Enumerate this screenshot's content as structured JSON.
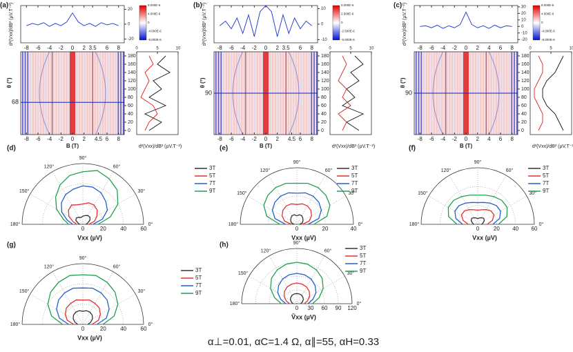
{
  "heatmaps": [
    {
      "label": "(a)",
      "trace_ylabel": "d²(Vxx)/dB² (µV.T⁻²)",
      "trace_ylim": [
        -25,
        25
      ],
      "trace_yticks": [
        -20,
        0,
        20
      ],
      "trace_x": [
        -8,
        -7,
        -6,
        -5,
        -4,
        -3,
        -2,
        -1,
        0,
        1,
        2,
        3,
        4,
        5,
        6,
        7,
        8
      ],
      "trace": [
        -2,
        1,
        -1,
        2,
        -3,
        1,
        -2,
        3,
        15,
        3,
        -2,
        1,
        -3,
        2,
        -1,
        1,
        -2
      ],
      "trace_xticks": [
        -8,
        -6,
        -4,
        -2,
        0,
        2,
        3.5,
        6,
        8
      ],
      "xlim": [
        -9,
        9
      ],
      "heat_xticks": [
        -8,
        -6,
        -4,
        -2,
        0,
        2,
        4.5,
        6,
        8
      ],
      "xlabel": "B (T)",
      "ylabel": "θ (°)",
      "ylim": [
        -10,
        190
      ],
      "yticks": [
        0,
        20,
        40,
        60,
        80,
        100,
        120,
        140,
        160,
        180
      ],
      "theta_mark": 68,
      "colorbar_labels": [
        "8.000E-6",
        "4.000E-6",
        "0",
        "-4.000E-6",
        "-8.000E-6"
      ],
      "profile_xlabel": "d²(Vxx)/dB² (µV.T⁻²)",
      "profile_lim": [
        0,
        10
      ],
      "profile_ticks": [
        0,
        5,
        10
      ],
      "profile_theta": [
        0,
        20,
        40,
        60,
        80,
        100,
        120,
        140,
        160,
        180
      ],
      "profile_black": [
        3,
        6,
        2,
        7,
        3,
        6,
        4,
        8,
        5,
        7
      ],
      "profile_red": [
        2,
        3,
        5,
        4,
        1,
        2,
        3,
        2,
        4,
        3
      ]
    },
    {
      "label": "(b)",
      "trace_ylabel": "d²(Vxx)/dB² (µV.T⁻²)",
      "trace_ylim": [
        -12,
        12
      ],
      "trace_yticks": [
        -10,
        0,
        10
      ],
      "trace_x": [
        -8,
        -7,
        -6,
        -5,
        -4,
        -3,
        -2,
        -1,
        0,
        1,
        2,
        3,
        4,
        5,
        6,
        7,
        8
      ],
      "trace": [
        -1,
        2,
        -3,
        4,
        -6,
        6,
        -8,
        8,
        12,
        8,
        -8,
        6,
        -6,
        4,
        -3,
        2,
        -1
      ],
      "trace_xticks": [
        -8,
        -6,
        -4,
        -2,
        0,
        2,
        3.5,
        6,
        8
      ],
      "xlim": [
        -9,
        9
      ],
      "heat_xticks": [
        -8,
        -6,
        -4,
        -2,
        0,
        2,
        4.5,
        6,
        8
      ],
      "xlabel": "B (T)",
      "ylabel": "θ (°)",
      "ylim": [
        -10,
        190
      ],
      "yticks": [
        0,
        20,
        40,
        60,
        80,
        100,
        120,
        140,
        160,
        180
      ],
      "theta_mark": 90,
      "colorbar_labels": [
        "5.000E-6",
        "2.500E-6",
        "0",
        "-2.500E-6",
        "-5.000E-6"
      ],
      "profile_xlabel": "d²(Vxx)/dB² (µV.T⁻²)",
      "profile_lim": [
        0,
        10
      ],
      "profile_ticks": [
        0,
        5,
        10
      ],
      "profile_theta": [
        0,
        20,
        40,
        60,
        80,
        100,
        120,
        140,
        160,
        180
      ],
      "profile_black": [
        7,
        4,
        8,
        3,
        6,
        4,
        7,
        5,
        8,
        6
      ],
      "profile_red": [
        3,
        4,
        2,
        5,
        3,
        4,
        2,
        3,
        4,
        3
      ]
    },
    {
      "label": "(c)",
      "trace_ylabel": "d²(Vxx)/dB² (µV.T⁻²)",
      "trace_ylim": [
        -25,
        32
      ],
      "trace_yticks": [
        -20,
        -10,
        0,
        10,
        20,
        30
      ],
      "trace_x": [
        -8,
        -7,
        -6,
        -5,
        -4,
        -3,
        -2,
        -1,
        0,
        1,
        2,
        3,
        4,
        5,
        6,
        7,
        8
      ],
      "trace": [
        0,
        1,
        -2,
        2,
        -3,
        1,
        -2,
        3,
        22,
        3,
        -2,
        1,
        -3,
        2,
        -2,
        1,
        0
      ],
      "trace_xticks": [
        -8,
        -6,
        -4,
        -2,
        0,
        2,
        4,
        6,
        8
      ],
      "xlim": [
        -9,
        9
      ],
      "heat_xticks": [
        -8,
        -6,
        -4,
        -2,
        0,
        2,
        4,
        6,
        8
      ],
      "xlabel": "B (T)",
      "ylabel": "θ (°)",
      "ylim": [
        -10,
        190
      ],
      "yticks": [
        0,
        20,
        40,
        60,
        80,
        100,
        120,
        140,
        160,
        180
      ],
      "theta_mark": 90,
      "colorbar_labels": [
        "8.000E-6",
        "4.000E-6",
        "0",
        "-4.000E-6",
        "-8.000E-6"
      ],
      "profile_xlabel": "d²(Vxx)/dB² (µV.T⁻²)",
      "profile_lim": [
        0,
        10
      ],
      "profile_ticks": [
        0,
        5,
        10
      ],
      "profile_theta": [
        0,
        20,
        40,
        60,
        80,
        100,
        120,
        140,
        160,
        180
      ],
      "profile_black": [
        8,
        7,
        6,
        4,
        3,
        3,
        4,
        6,
        7,
        8
      ],
      "profile_red": [
        2,
        3,
        3,
        2,
        1,
        1,
        2,
        3,
        3,
        2
      ]
    }
  ],
  "theta_ticks": [
    {
      "value": 0,
      "label": "0°"
    },
    {
      "value": 30,
      "label": "30°"
    },
    {
      "value": 60,
      "label": "60°"
    },
    {
      "value": 90,
      "label": "90°"
    },
    {
      "value": 120,
      "label": "120°"
    },
    {
      "value": 150,
      "label": "150°"
    },
    {
      "value": 180,
      "label": "180°"
    }
  ],
  "polars": [
    {
      "type": "polar",
      "label": "(d)",
      "axis_label": "Vxx (µV)",
      "rlim": [
        0,
        60
      ],
      "rticks": [
        0,
        20,
        40,
        60
      ],
      "theta": [
        0,
        15,
        30,
        45,
        60,
        75,
        90,
        105,
        120,
        135,
        150,
        165,
        180
      ],
      "series": [
        {
          "name": "3T",
          "color": "#333333",
          "values": [
            3,
            5,
            8,
            10,
            10,
            9,
            8,
            7,
            8,
            9,
            8,
            5,
            3
          ]
        },
        {
          "name": "5T",
          "color": "#e03030",
          "values": [
            6,
            12,
            16,
            20,
            22,
            22,
            20,
            20,
            22,
            20,
            16,
            10,
            6
          ]
        },
        {
          "name": "7T",
          "color": "#2060d0",
          "values": [
            10,
            20,
            28,
            32,
            36,
            38,
            38,
            36,
            34,
            30,
            24,
            16,
            10
          ]
        },
        {
          "name": "9T",
          "color": "#20a050",
          "values": [
            15,
            28,
            40,
            48,
            52,
            55,
            52,
            50,
            45,
            38,
            30,
            20,
            14
          ]
        }
      ]
    },
    {
      "type": "polar",
      "label": "(e)",
      "axis_label": "Vxx (µV)",
      "rlim": [
        0,
        40
      ],
      "rticks": [
        0,
        20,
        40
      ],
      "theta": [
        0,
        15,
        30,
        45,
        60,
        75,
        90,
        105,
        120,
        135,
        150,
        165,
        180
      ],
      "series": [
        {
          "name": "3T",
          "color": "#333333",
          "values": [
            2,
            4,
            5,
            6,
            7,
            7,
            6,
            7,
            7,
            6,
            5,
            4,
            2
          ]
        },
        {
          "name": "5T",
          "color": "#e03030",
          "values": [
            4,
            9,
            12,
            14,
            15,
            15,
            14,
            15,
            15,
            14,
            12,
            9,
            4
          ]
        },
        {
          "name": "7T",
          "color": "#2060d0",
          "values": [
            8,
            16,
            20,
            22,
            23,
            23,
            22,
            23,
            23,
            22,
            20,
            16,
            8
          ]
        },
        {
          "name": "9T",
          "color": "#20a050",
          "values": [
            12,
            22,
            27,
            29,
            30,
            30,
            29,
            30,
            30,
            29,
            27,
            22,
            12
          ]
        }
      ]
    },
    {
      "type": "polar",
      "label": "(f)",
      "axis_label": "Vxx (µV)",
      "rlim": [
        0,
        60
      ],
      "rticks": [
        0,
        20,
        40,
        60
      ],
      "theta": [
        0,
        15,
        30,
        45,
        60,
        75,
        90,
        105,
        120,
        135,
        150,
        165,
        180
      ],
      "series": [
        {
          "name": "3T",
          "color": "#333333",
          "values": [
            4,
            6,
            8,
            9,
            8,
            7,
            6,
            7,
            8,
            9,
            8,
            6,
            4
          ]
        },
        {
          "name": "5T",
          "color": "#e03030",
          "values": [
            10,
            16,
            20,
            20,
            18,
            16,
            15,
            16,
            18,
            20,
            20,
            16,
            10
          ]
        },
        {
          "name": "7T",
          "color": "#2060d0",
          "values": [
            16,
            24,
            28,
            28,
            26,
            24,
            23,
            24,
            26,
            28,
            28,
            24,
            16
          ]
        },
        {
          "name": "9T",
          "color": "#20a050",
          "values": [
            22,
            32,
            36,
            36,
            34,
            32,
            31,
            32,
            34,
            36,
            36,
            32,
            22
          ]
        }
      ]
    },
    {
      "type": "polar",
      "label": "(g)",
      "axis_label": "Vxx (µV)",
      "rlim": [
        0,
        60
      ],
      "rticks": [
        0,
        20,
        40,
        60
      ],
      "theta": [
        0,
        15,
        30,
        45,
        60,
        75,
        90,
        105,
        120,
        135,
        150,
        165,
        180
      ],
      "series": [
        {
          "name": "3T",
          "color": "#333333",
          "values": [
            5,
            8,
            11,
            13,
            14,
            14,
            13,
            14,
            14,
            13,
            11,
            8,
            5
          ]
        },
        {
          "name": "5T",
          "color": "#e03030",
          "values": [
            9,
            16,
            20,
            23,
            24,
            25,
            24,
            25,
            24,
            23,
            20,
            16,
            9
          ]
        },
        {
          "name": "7T",
          "color": "#2060d0",
          "values": [
            14,
            24,
            30,
            34,
            36,
            37,
            36,
            37,
            36,
            34,
            30,
            24,
            14
          ]
        },
        {
          "name": "9T",
          "color": "#20a050",
          "values": [
            20,
            32,
            40,
            45,
            48,
            50,
            49,
            50,
            48,
            45,
            40,
            32,
            20
          ]
        }
      ]
    },
    {
      "type": "polar",
      "label": "(h)",
      "axis_label": "Ṽxx (µV)",
      "rlim": [
        0,
        120
      ],
      "rticks": [
        0,
        30,
        60,
        90,
        120
      ],
      "theta": [
        0,
        15,
        30,
        45,
        60,
        75,
        90,
        105,
        120,
        135,
        150,
        165,
        180
      ],
      "series": [
        {
          "name": "3T",
          "color": "#333333",
          "values": [
            8,
            12,
            16,
            19,
            21,
            22,
            22,
            22,
            21,
            19,
            16,
            12,
            8
          ]
        },
        {
          "name": "5T",
          "color": "#e03030",
          "values": [
            16,
            24,
            32,
            38,
            42,
            44,
            45,
            44,
            42,
            38,
            32,
            24,
            16
          ]
        },
        {
          "name": "7T",
          "color": "#2060d0",
          "values": [
            24,
            36,
            48,
            56,
            62,
            65,
            66,
            65,
            62,
            56,
            48,
            36,
            24
          ]
        },
        {
          "name": "9T",
          "color": "#20a050",
          "values": [
            34,
            50,
            66,
            78,
            85,
            89,
            90,
            89,
            85,
            78,
            66,
            50,
            34
          ]
        }
      ]
    }
  ],
  "caption": "α⊥=0.01, αC=1.4 Ω, α∥=55, αH=0.33"
}
